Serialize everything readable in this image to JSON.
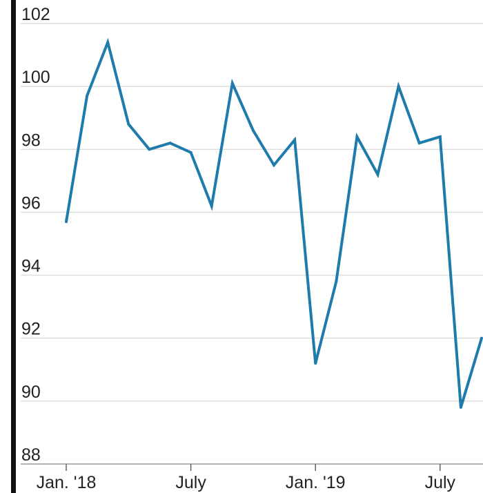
{
  "chart_data": {
    "type": "line",
    "title": "",
    "xlabel": "",
    "ylabel": "",
    "ylim": [
      88,
      102
    ],
    "yticks": [
      88,
      90,
      92,
      94,
      96,
      98,
      100,
      102
    ],
    "xtick_labels": [
      {
        "index": 0,
        "label": "Jan. '18"
      },
      {
        "index": 6,
        "label": "July"
      },
      {
        "index": 12,
        "label": "Jan. '19"
      },
      {
        "index": 18,
        "label": "July"
      }
    ],
    "grid": true,
    "line_color": "#1f7bab",
    "series": [
      {
        "name": "",
        "x": [
          "2018-01",
          "2018-02",
          "2018-03",
          "2018-04",
          "2018-05",
          "2018-06",
          "2018-07",
          "2018-08",
          "2018-09",
          "2018-10",
          "2018-11",
          "2018-12",
          "2019-01",
          "2019-02",
          "2019-03",
          "2019-04",
          "2019-05",
          "2019-06",
          "2019-07",
          "2019-08",
          "2019-09"
        ],
        "values": [
          95.7,
          99.7,
          101.4,
          98.8,
          98.0,
          98.2,
          97.9,
          96.2,
          100.1,
          98.6,
          97.5,
          98.3,
          91.2,
          93.8,
          98.4,
          97.2,
          100.0,
          98.2,
          98.4,
          89.8,
          92.0
        ]
      }
    ]
  }
}
